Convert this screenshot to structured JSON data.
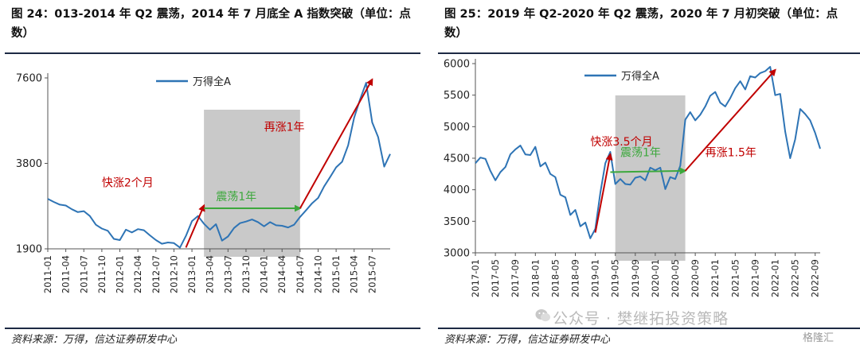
{
  "figure_left": {
    "title": "图 24：013-2014 年 Q2 震荡，2014 年 7 月底全 A 指数突破（单位：点数）",
    "source": "资料来源：万得，信达证券研发中心"
  },
  "figure_right": {
    "title": "图 25：2019 年 Q2-2020 年 Q2 震荡，2020 年 7 月初突破（单位：点数）",
    "source": "资料来源：万得，信达证券研发中心"
  },
  "watermark": {
    "text": "公众号 · 樊继拓投资策略",
    "corner": "格隆汇"
  },
  "chart_data": [
    {
      "type": "line",
      "scale": "log",
      "series": [
        {
          "name": "万得全A",
          "color": "#2e74b5",
          "x": [
            "2011-01",
            "2011-02",
            "2011-03",
            "2011-04",
            "2011-05",
            "2011-06",
            "2011-07",
            "2011-08",
            "2011-09",
            "2011-10",
            "2011-11",
            "2011-12",
            "2012-01",
            "2012-02",
            "2012-03",
            "2012-04",
            "2012-05",
            "2012-06",
            "2012-07",
            "2012-08",
            "2012-09",
            "2012-10",
            "2012-11",
            "2012-12",
            "2013-01",
            "2013-02",
            "2013-03",
            "2013-04",
            "2013-05",
            "2013-06",
            "2013-07",
            "2013-08",
            "2013-09",
            "2013-10",
            "2013-11",
            "2013-12",
            "2014-01",
            "2014-02",
            "2014-03",
            "2014-04",
            "2014-05",
            "2014-06",
            "2014-07",
            "2014-08",
            "2014-09",
            "2014-10",
            "2014-11",
            "2014-12",
            "2015-01",
            "2015-02",
            "2015-03",
            "2015-04",
            "2015-05",
            "2015-06",
            "2015-07",
            "2015-08",
            "2015-09",
            "2015-10"
          ],
          "values": [
            2850,
            2780,
            2720,
            2700,
            2620,
            2560,
            2580,
            2480,
            2310,
            2240,
            2200,
            2060,
            2040,
            2220,
            2170,
            2230,
            2210,
            2120,
            2040,
            1980,
            2000,
            1990,
            1920,
            2110,
            2380,
            2480,
            2330,
            2220,
            2320,
            2030,
            2100,
            2250,
            2340,
            2370,
            2410,
            2360,
            2280,
            2360,
            2300,
            2290,
            2260,
            2310,
            2460,
            2600,
            2750,
            2870,
            3150,
            3400,
            3680,
            3850,
            4400,
            5500,
            6400,
            7300,
            5300,
            4700,
            3700,
            4100
          ]
        }
      ],
      "yticks": [
        1900,
        3800,
        7600
      ],
      "ylim": [
        1900,
        7600
      ],
      "xticks": [
        "2011-01",
        "2011-04",
        "2011-07",
        "2011-10",
        "2012-01",
        "2012-04",
        "2012-07",
        "2012-10",
        "2013-01",
        "2013-04",
        "2013-07",
        "2013-10",
        "2014-01",
        "2014-04",
        "2014-07",
        "2014-10",
        "2015-01",
        "2015-04",
        "2015-07"
      ],
      "xlim": [
        "2011-01",
        "2015-10"
      ],
      "shaded_region": [
        "2013-03",
        "2014-07"
      ],
      "arrows": [
        {
          "from": [
            "2012-12",
            1920
          ],
          "to": [
            "2013-03",
            2700
          ],
          "color": "#c00000"
        },
        {
          "from": [
            "2013-03",
            2640
          ],
          "to": [
            "2014-07",
            2640
          ],
          "color": "#3ca83c"
        },
        {
          "from": [
            "2014-07",
            2640
          ],
          "to": [
            "2015-07",
            7500
          ],
          "color": "#c00000"
        }
      ],
      "annotations": [
        {
          "text": "快涨2个月",
          "x": "2011-10",
          "y": 3150,
          "color": "#c00000"
        },
        {
          "text": "震荡1年",
          "x": "2013-05",
          "y": 2820,
          "color": "#3ca83c"
        },
        {
          "text": "再涨1年",
          "x": "2014-01",
          "y": 4950,
          "color": "#c00000"
        }
      ]
    },
    {
      "type": "line",
      "series": [
        {
          "name": "万得全A",
          "color": "#2e74b5",
          "x": [
            "2017-01",
            "2017-02",
            "2017-03",
            "2017-04",
            "2017-05",
            "2017-06",
            "2017-07",
            "2017-08",
            "2017-09",
            "2017-10",
            "2017-11",
            "2017-12",
            "2018-01",
            "2018-02",
            "2018-03",
            "2018-04",
            "2018-05",
            "2018-06",
            "2018-07",
            "2018-08",
            "2018-09",
            "2018-10",
            "2018-11",
            "2018-12",
            "2019-01",
            "2019-02",
            "2019-03",
            "2019-04",
            "2019-05",
            "2019-06",
            "2019-07",
            "2019-08",
            "2019-09",
            "2019-10",
            "2019-11",
            "2019-12",
            "2020-01",
            "2020-02",
            "2020-03",
            "2020-04",
            "2020-05",
            "2020-06",
            "2020-07",
            "2020-08",
            "2020-09",
            "2020-10",
            "2020-11",
            "2020-12",
            "2021-01",
            "2021-02",
            "2021-03",
            "2021-04",
            "2021-05",
            "2021-06",
            "2021-07",
            "2021-08",
            "2021-09",
            "2021-10",
            "2021-11",
            "2021-12",
            "2022-01",
            "2022-02",
            "2022-03",
            "2022-04",
            "2022-05",
            "2022-06",
            "2022-07",
            "2022-08",
            "2022-09",
            "2022-10"
          ],
          "values": [
            4420,
            4510,
            4490,
            4300,
            4150,
            4280,
            4360,
            4560,
            4640,
            4700,
            4560,
            4550,
            4680,
            4370,
            4430,
            4250,
            4200,
            3920,
            3880,
            3600,
            3680,
            3420,
            3480,
            3230,
            3380,
            3950,
            4420,
            4600,
            4090,
            4170,
            4090,
            4080,
            4190,
            4210,
            4150,
            4350,
            4310,
            4350,
            4010,
            4200,
            4170,
            4380,
            5110,
            5230,
            5100,
            5190,
            5320,
            5490,
            5550,
            5380,
            5320,
            5450,
            5610,
            5720,
            5590,
            5800,
            5780,
            5850,
            5880,
            5950,
            5500,
            5520,
            4920,
            4500,
            4800,
            5280,
            5200,
            5100,
            4900,
            4650
          ]
        }
      ],
      "yticks": [
        3000,
        3500,
        4000,
        4500,
        5000,
        5500,
        6000
      ],
      "ylim": [
        3000,
        6000
      ],
      "xticks": [
        "2017-01",
        "2017-05",
        "2017-09",
        "2018-01",
        "2018-05",
        "2018-09",
        "2019-01",
        "2019-05",
        "2019-09",
        "2020-01",
        "2020-05",
        "2020-09",
        "2021-01",
        "2021-05",
        "2021-09",
        "2022-01",
        "2022-05",
        "2022-09"
      ],
      "xlim": [
        "2017-01",
        "2022-10"
      ],
      "shaded_region": [
        "2019-05",
        "2020-07"
      ],
      "arrows": [
        {
          "from": [
            "2019-01",
            3320
          ],
          "to": [
            "2019-04",
            4560
          ],
          "color": "#c00000"
        },
        {
          "from": [
            "2019-04",
            4280
          ],
          "to": [
            "2020-07",
            4300
          ],
          "color": "#3ca83c"
        },
        {
          "from": [
            "2020-07",
            4300
          ],
          "to": [
            "2022-01",
            5900
          ],
          "color": "#c00000"
        }
      ],
      "annotations": [
        {
          "text": "快涨3.5个月",
          "x": "2018-12",
          "y": 4700,
          "color": "#c00000"
        },
        {
          "text": "震荡1年",
          "x": "2019-06",
          "y": 4530,
          "color": "#3ca83c"
        },
        {
          "text": "再涨1.5年",
          "x": "2020-11",
          "y": 4530,
          "color": "#c00000"
        }
      ]
    }
  ]
}
